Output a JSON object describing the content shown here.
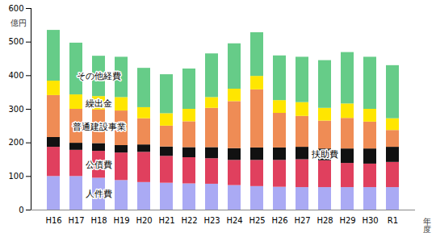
{
  "chart_data": {
    "type": "bar",
    "stacked": true,
    "y_label": "億円",
    "x_label": "年度",
    "categories": [
      "H16",
      "H17",
      "H18",
      "H19",
      "H20",
      "H21",
      "H22",
      "H23",
      "H24",
      "H25",
      "H26",
      "H27",
      "H28",
      "H29",
      "H30",
      "R1"
    ],
    "series": [
      {
        "name": "人件費",
        "color": "#aaaaf4",
        "values": [
          100,
          100,
          95,
          88,
          82,
          80,
          78,
          77,
          73,
          70,
          68,
          67,
          67,
          67,
          67,
          67
        ]
      },
      {
        "name": "公債費",
        "color": "#e0405e",
        "values": [
          87,
          78,
          80,
          82,
          90,
          80,
          78,
          76,
          75,
          78,
          80,
          83,
          80,
          72,
          70,
          75
        ]
      },
      {
        "name": "扶助費",
        "color": "#111111",
        "values": [
          29,
          21,
          23,
          22,
          22,
          28,
          30,
          33,
          35,
          37,
          37,
          37,
          35,
          43,
          45,
          45
        ]
      },
      {
        "name": "普通建設事業",
        "color": "#ef8c55",
        "values": [
          125,
          101,
          100,
          103,
          78,
          62,
          77,
          117,
          140,
          173,
          103,
          92,
          83,
          91,
          80,
          50
        ]
      },
      {
        "name": "繰出金",
        "color": "#ffe600",
        "values": [
          43,
          43,
          40,
          40,
          33,
          37,
          37,
          32,
          37,
          40,
          38,
          41,
          38,
          43,
          38,
          35
        ]
      },
      {
        "name": "その他経費",
        "color": "#66cc88",
        "values": [
          151,
          154,
          120,
          120,
          117,
          116,
          120,
          130,
          135,
          130,
          133,
          135,
          142,
          153,
          155,
          158
        ]
      }
    ],
    "ylim": [
      0,
      600
    ],
    "yticks": [
      0,
      100,
      200,
      300,
      400,
      500,
      600
    ],
    "grid": false
  }
}
